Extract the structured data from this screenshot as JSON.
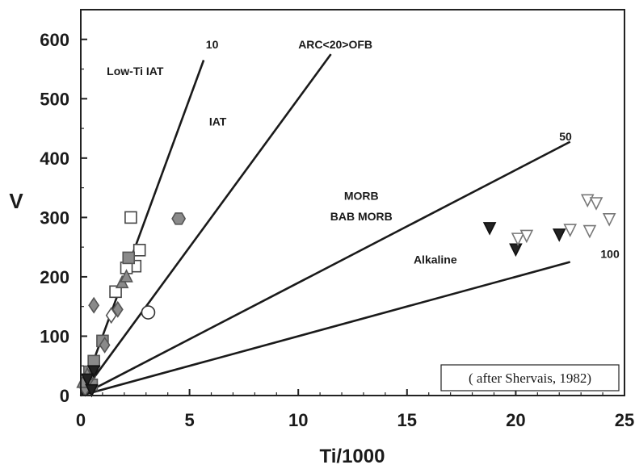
{
  "chart_data": {
    "type": "scatter",
    "xlabel": "Ti/1000",
    "ylabel": "V",
    "xlim": [
      0,
      25
    ],
    "ylim": [
      0,
      650
    ],
    "x_ticks": [
      0,
      5,
      10,
      15,
      20,
      25
    ],
    "y_ticks": [
      0,
      100,
      200,
      300,
      400,
      500,
      600
    ],
    "grid": false,
    "annotation": "( after Shervais, 1982)",
    "field_labels": [
      {
        "text": "Low-Ti IAT",
        "x": 2.5,
        "y": 540
      },
      {
        "text": "IAT",
        "x": 6.3,
        "y": 455
      },
      {
        "text": "MORB",
        "x": 12.9,
        "y": 330
      },
      {
        "text": "BAB MORB",
        "x": 12.9,
        "y": 295
      },
      {
        "text": "Alkaline",
        "x": 16.3,
        "y": 222
      }
    ],
    "ratio_lines": [
      {
        "label": "10",
        "slope": 100,
        "x_end": 5.65,
        "label_x": 5.75,
        "label_y": 585
      },
      {
        "label": "ARC<20>OFB",
        "slope": 50,
        "x_end": 11.5,
        "label_x": 10.0,
        "label_y": 585
      },
      {
        "label": "50",
        "slope": 19,
        "x_end": 22.5,
        "label_x": 22.0,
        "label_y": 430
      },
      {
        "label": "100",
        "slope": 10,
        "x_end": 22.5,
        "label_x": 23.9,
        "label_y": 232
      }
    ],
    "series": [
      {
        "marker": "open-square",
        "fill": "#ffffff",
        "stroke": "#444444",
        "points": [
          [
            2.3,
            300
          ],
          [
            2.7,
            245
          ],
          [
            2.5,
            218
          ],
          [
            2.1,
            215
          ],
          [
            1.6,
            175
          ]
        ]
      },
      {
        "marker": "square",
        "fill": "#8a8a8a",
        "stroke": "#555555",
        "points": [
          [
            2.2,
            232
          ],
          [
            1.0,
            92
          ],
          [
            0.6,
            58
          ],
          [
            0.4,
            40
          ],
          [
            0.5,
            18
          ]
        ]
      },
      {
        "marker": "hexagon",
        "fill": "#8a8a8a",
        "stroke": "#555555",
        "points": [
          [
            4.5,
            298
          ]
        ]
      },
      {
        "marker": "open-circle",
        "fill": "#ffffff",
        "stroke": "#333333",
        "points": [
          [
            3.1,
            140
          ]
        ]
      },
      {
        "marker": "diamond",
        "fill": "#8a8a8a",
        "stroke": "#555555",
        "points": [
          [
            0.6,
            152
          ],
          [
            1.7,
            145
          ],
          [
            1.1,
            85
          ],
          [
            0.4,
            30
          ],
          [
            0.2,
            12
          ]
        ]
      },
      {
        "marker": "open-diamond",
        "fill": "#ffffff",
        "stroke": "#555555",
        "points": [
          [
            1.4,
            135
          ]
        ]
      },
      {
        "marker": "triangle-up",
        "fill": "#8a8a8a",
        "stroke": "#555555",
        "points": [
          [
            1.9,
            190
          ],
          [
            2.1,
            200
          ],
          [
            0.3,
            35
          ],
          [
            0.1,
            22
          ]
        ]
      },
      {
        "marker": "filled-triangle-down",
        "fill": "#222222",
        "stroke": "#111111",
        "points": [
          [
            18.8,
            283
          ],
          [
            20.0,
            247
          ],
          [
            22.0,
            272
          ],
          [
            0.6,
            42
          ],
          [
            0.3,
            28
          ],
          [
            0.5,
            10
          ]
        ]
      },
      {
        "marker": "open-triangle-down",
        "fill": "#ffffff",
        "stroke": "#777777",
        "points": [
          [
            20.1,
            265
          ],
          [
            20.5,
            270
          ],
          [
            22.5,
            280
          ],
          [
            23.3,
            330
          ],
          [
            23.7,
            325
          ],
          [
            23.4,
            278
          ],
          [
            24.3,
            298
          ]
        ]
      }
    ]
  }
}
